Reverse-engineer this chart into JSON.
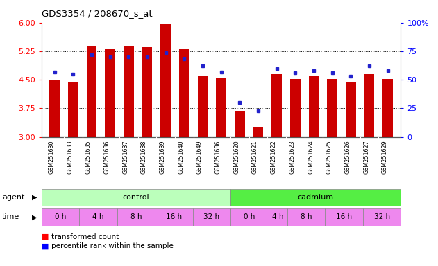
{
  "title": "GDS3354 / 208670_s_at",
  "samples": [
    "GSM251630",
    "GSM251633",
    "GSM251635",
    "GSM251636",
    "GSM251637",
    "GSM251638",
    "GSM251639",
    "GSM251640",
    "GSM251649",
    "GSM251686",
    "GSM251620",
    "GSM251621",
    "GSM251622",
    "GSM251623",
    "GSM251624",
    "GSM251625",
    "GSM251626",
    "GSM251627",
    "GSM251629"
  ],
  "bar_values": [
    4.5,
    4.45,
    5.37,
    5.3,
    5.38,
    5.35,
    5.95,
    5.3,
    4.62,
    4.55,
    3.68,
    3.27,
    4.65,
    4.52,
    4.62,
    4.52,
    4.45,
    4.65,
    4.52
  ],
  "dot_values": [
    57,
    55,
    72,
    70,
    70,
    70,
    74,
    68,
    62,
    57,
    30,
    23,
    60,
    56,
    58,
    56,
    53,
    62,
    58
  ],
  "ylim_left": [
    3,
    6
  ],
  "ylim_right": [
    0,
    100
  ],
  "yticks_left": [
    3,
    3.75,
    4.5,
    5.25,
    6
  ],
  "yticks_right": [
    0,
    25,
    50,
    75,
    100
  ],
  "yticklabels_right": [
    "0",
    "25",
    "50",
    "75",
    "100%"
  ],
  "bar_color": "#cc0000",
  "dot_color": "#2222cc",
  "agent_groups": [
    {
      "label": "control",
      "start": 0,
      "end": 10,
      "color": "#bbffbb"
    },
    {
      "label": "cadmium",
      "start": 10,
      "end": 19,
      "color": "#55ee44"
    }
  ],
  "time_groups": [
    {
      "label": "0 h",
      "start": 0,
      "end": 2,
      "color": "#ee88ee"
    },
    {
      "label": "4 h",
      "start": 2,
      "end": 4,
      "color": "#ee88ee"
    },
    {
      "label": "8 h",
      "start": 4,
      "end": 6,
      "color": "#ee88ee"
    },
    {
      "label": "16 h",
      "start": 6,
      "end": 8,
      "color": "#ee88ee"
    },
    {
      "label": "32 h",
      "start": 8,
      "end": 10,
      "color": "#ee88ee"
    },
    {
      "label": "0 h",
      "start": 10,
      "end": 12,
      "color": "#ee88ee"
    },
    {
      "label": "4 h",
      "start": 12,
      "end": 13,
      "color": "#ee88ee"
    },
    {
      "label": "8 h",
      "start": 13,
      "end": 15,
      "color": "#ee88ee"
    },
    {
      "label": "16 h",
      "start": 15,
      "end": 17,
      "color": "#ee88ee"
    },
    {
      "label": "32 h",
      "start": 17,
      "end": 19,
      "color": "#ee88ee"
    }
  ],
  "legend_bar_label": "transformed count",
  "legend_dot_label": "percentile rank within the sample",
  "bar_width": 0.55,
  "fig_bg": "#ffffff",
  "xtick_area_color": "#cccccc",
  "spine_color": "#888888"
}
